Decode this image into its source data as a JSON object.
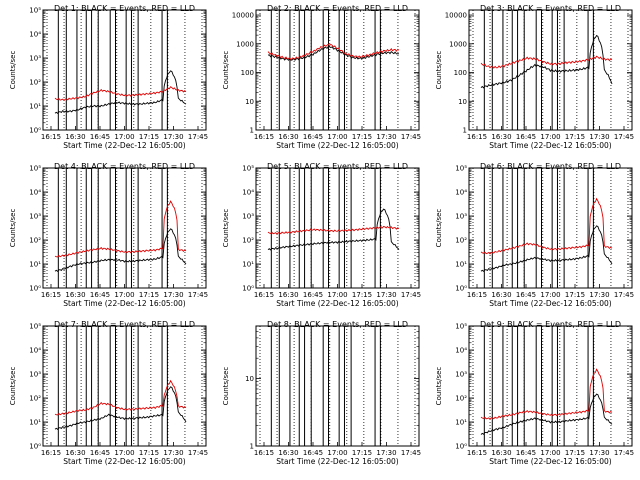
{
  "colors": {
    "events": "#000000",
    "lld": "#e00000",
    "background": "#ffffff"
  },
  "chart_data": [
    {
      "type": "line",
      "title": "Det 1: BLACK = Events, RED = LLD",
      "xlabel": "Start Time (22-Dec-12 16:05:00)",
      "ylabel": "Counts/sec",
      "xticks": [
        "16:15",
        "16:30",
        "16:45",
        "17:00",
        "17:15",
        "17:30",
        "17:45"
      ],
      "yscale": "log",
      "ylim": [
        1,
        100000
      ],
      "yticks": [
        "10⁰",
        "10¹",
        "10²",
        "10³",
        "10⁴",
        "10⁵"
      ],
      "series": [
        {
          "values": [
            5,
            6,
            6,
            7,
            9,
            10,
            10,
            12,
            14,
            13,
            12,
            12,
            13,
            14,
            18,
            300,
            20,
            12
          ]
        },
        {
          "values": [
            20,
            18,
            20,
            22,
            25,
            35,
            45,
            40,
            32,
            28,
            28,
            30,
            32,
            35,
            40,
            60,
            45,
            40
          ]
        }
      ]
    },
    {
      "type": "line",
      "title": "Det 2: BLACK = Events, RED = LLD",
      "xlabel": "Start Time (22-Dec-12 16:05:00)",
      "ylabel": "Counts/sec",
      "xticks": [
        "16:15",
        "16:30",
        "16:45",
        "17:00",
        "17:15",
        "17:30",
        "17:45"
      ],
      "yscale": "log",
      "ylim": [
        1,
        15000
      ],
      "yticks": [
        "1",
        "10",
        "100",
        "1000",
        "10000"
      ],
      "series": [
        {
          "values": [
            400,
            350,
            300,
            280,
            300,
            350,
            450,
            650,
            800,
            600,
            420,
            330,
            310,
            350,
            420,
            480,
            500,
            450
          ]
        },
        {
          "values": [
            500,
            400,
            330,
            300,
            330,
            420,
            560,
            780,
            950,
            700,
            460,
            370,
            350,
            400,
            480,
            560,
            620,
            600
          ]
        }
      ]
    },
    {
      "type": "line",
      "title": "Det 3: BLACK = Events, RED = LLD",
      "xlabel": "Start Time (22-Dec-12 16:05:00)",
      "ylabel": "Counts/sec",
      "xticks": [
        "16:15",
        "16:30",
        "16:45",
        "17:00",
        "17:15",
        "17:30",
        "17:45"
      ],
      "yscale": "log",
      "ylim": [
        1,
        15000
      ],
      "yticks": [
        "1",
        "10",
        "100",
        "1000",
        "10000"
      ],
      "series": [
        {
          "values": [
            30,
            35,
            40,
            45,
            55,
            80,
            120,
            180,
            160,
            120,
            110,
            115,
            120,
            130,
            150,
            2000,
            120,
            40
          ]
        },
        {
          "values": [
            200,
            160,
            150,
            170,
            210,
            260,
            320,
            300,
            240,
            200,
            200,
            220,
            230,
            250,
            280,
            350,
            290,
            280
          ]
        }
      ]
    },
    {
      "type": "line",
      "title": "Det 4: BLACK = Events, RED = LLD",
      "xlabel": "Start Time (22-Dec-12 16:05:00)",
      "ylabel": "Counts/sec",
      "xticks": [
        "16:15",
        "16:30",
        "16:45",
        "17:00",
        "17:15",
        "17:30",
        "17:45"
      ],
      "yscale": "log",
      "ylim": [
        1,
        100000
      ],
      "yticks": [
        "10⁰",
        "10¹",
        "10²",
        "10³",
        "10⁴",
        "10⁵"
      ],
      "series": [
        {
          "values": [
            5,
            6,
            8,
            10,
            11,
            12,
            14,
            15,
            15,
            13,
            13,
            14,
            15,
            16,
            20,
            300,
            20,
            10
          ]
        },
        {
          "values": [
            20,
            22,
            25,
            30,
            35,
            40,
            45,
            42,
            36,
            32,
            32,
            34,
            36,
            38,
            45,
            4000,
            40,
            35
          ]
        }
      ]
    },
    {
      "type": "line",
      "title": "Det 5: BLACK = Events, RED = LLD",
      "xlabel": "Start Time (22-Dec-12 16:05:00)",
      "ylabel": "Counts/sec",
      "xticks": [
        "16:15",
        "16:30",
        "16:45",
        "17:00",
        "17:15",
        "17:30",
        "17:45"
      ],
      "yscale": "log",
      "ylim": [
        1,
        100000
      ],
      "yticks": [
        "10⁰",
        "10¹",
        "10²",
        "10³",
        "10⁴",
        "10⁵"
      ],
      "series": [
        {
          "values": [
            40,
            45,
            50,
            55,
            60,
            65,
            70,
            75,
            80,
            80,
            85,
            90,
            95,
            100,
            110,
            2000,
            80,
            40
          ]
        },
        {
          "values": [
            200,
            190,
            200,
            210,
            230,
            250,
            270,
            260,
            240,
            240,
            250,
            260,
            280,
            300,
            320,
            350,
            330,
            300
          ]
        }
      ]
    },
    {
      "type": "line",
      "title": "Det 6: BLACK = Events, RED = LLD",
      "xlabel": "Start Time (22-Dec-12 16:05:00)",
      "ylabel": "Counts/sec",
      "xticks": [
        "16:15",
        "16:30",
        "16:45",
        "17:00",
        "17:15",
        "17:30",
        "17:45"
      ],
      "yscale": "log",
      "ylim": [
        1,
        100000
      ],
      "yticks": [
        "10⁰",
        "10¹",
        "10²",
        "10³",
        "10⁴",
        "10⁵"
      ],
      "series": [
        {
          "values": [
            5,
            6,
            7,
            9,
            10,
            12,
            15,
            18,
            16,
            14,
            14,
            15,
            16,
            18,
            22,
            400,
            25,
            10
          ]
        },
        {
          "values": [
            30,
            28,
            32,
            38,
            45,
            55,
            70,
            65,
            50,
            42,
            42,
            45,
            48,
            52,
            60,
            5000,
            55,
            45
          ]
        }
      ]
    },
    {
      "type": "line",
      "title": "Det 7: BLACK = Events, RED = LLD",
      "xlabel": "Start Time (22-Dec-12 16:05:00)",
      "ylabel": "Counts/sec",
      "xticks": [
        "16:15",
        "16:30",
        "16:45",
        "17:00",
        "17:15",
        "17:30",
        "17:45"
      ],
      "yscale": "log",
      "ylim": [
        1,
        100000
      ],
      "yticks": [
        "10⁰",
        "10¹",
        "10²",
        "10³",
        "10⁴",
        "10⁵"
      ],
      "series": [
        {
          "values": [
            5,
            6,
            7,
            9,
            10,
            12,
            14,
            20,
            16,
            14,
            14,
            15,
            16,
            18,
            20,
            300,
            25,
            10
          ]
        },
        {
          "values": [
            20,
            22,
            25,
            30,
            32,
            40,
            60,
            55,
            40,
            34,
            34,
            36,
            38,
            40,
            48,
            500,
            45,
            40
          ]
        }
      ]
    },
    {
      "type": "line",
      "title": "Det 8: BLACK = Events, RED = LLD",
      "xlabel": "Start Time (22-Dec-12 16:05:00)",
      "ylabel": "Counts/sec",
      "xticks": [
        "16:15",
        "16:30",
        "16:45",
        "17:00",
        "17:15",
        "17:30",
        "17:45"
      ],
      "yscale": "log",
      "ylim": [
        1,
        60
      ],
      "yticks": [
        "1",
        "10"
      ],
      "series": [
        {
          "values": []
        },
        {
          "values": []
        }
      ]
    },
    {
      "type": "line",
      "title": "Det 9: BLACK = Events, RED = LLD",
      "xlabel": "Start Time (22-Dec-12 16:05:00)",
      "ylabel": "Counts/sec",
      "xticks": [
        "16:15",
        "16:30",
        "16:45",
        "17:00",
        "17:15",
        "17:30",
        "17:45"
      ],
      "yscale": "log",
      "ylim": [
        1,
        100000
      ],
      "yticks": [
        "10⁰",
        "10¹",
        "10²",
        "10³",
        "10⁴",
        "10⁵"
      ],
      "series": [
        {
          "values": [
            3,
            4,
            5,
            6,
            8,
            10,
            12,
            14,
            12,
            10,
            10,
            11,
            12,
            13,
            15,
            150,
            15,
            8
          ]
        },
        {
          "values": [
            15,
            14,
            15,
            18,
            20,
            24,
            28,
            26,
            22,
            20,
            20,
            22,
            24,
            26,
            30,
            1500,
            28,
            25
          ]
        }
      ]
    }
  ]
}
